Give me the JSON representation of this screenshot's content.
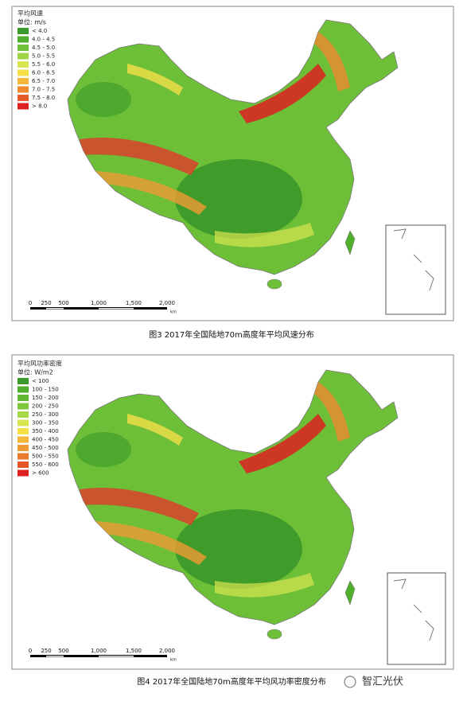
{
  "figures": [
    {
      "legend": {
        "title": "平均风速",
        "unit": "单位: m/s",
        "items": [
          "< 4.0",
          "4.0 - 4.5",
          "4.5 - 5.0",
          "5.0 - 5.5",
          "5.5 - 6.0",
          "6.0 - 6.5",
          "6.5 - 7.0",
          "7.0 - 7.5",
          "7.5 - 8.0",
          "> 8.0"
        ],
        "colors": [
          "#3a9a2a",
          "#4fae2c",
          "#72c13a",
          "#9fd447",
          "#d8e650",
          "#f5e04a",
          "#f4b73c",
          "#ef8a30",
          "#e85a28",
          "#dd2020"
        ]
      },
      "scale_labels": [
        "0",
        "250",
        "500",
        "1,000",
        "1,500",
        "2,000",
        "km"
      ],
      "caption": "图3  2017年全国陆地70m高度年平均风速分布"
    },
    {
      "legend": {
        "title": "平均风功率密度",
        "unit": "单位: W/m2",
        "items": [
          "< 100",
          "100 - 150",
          "150 - 200",
          "200 - 250",
          "250 - 300",
          "300 - 350",
          "350 - 400",
          "400 - 450",
          "450 - 500",
          "500 - 550",
          "550 - 600",
          "> 600"
        ],
        "colors": [
          "#3a9a2a",
          "#4fae2c",
          "#62b833",
          "#7fc83e",
          "#a6d84a",
          "#d8e650",
          "#f5e04a",
          "#f4b73c",
          "#ef9a33",
          "#ea7a2d",
          "#e55528",
          "#dd2020"
        ]
      },
      "scale_labels": [
        "0",
        "250",
        "500",
        "1,000",
        "1,500",
        "2,000",
        "km"
      ],
      "caption": "图4  2017年全国陆地70m高度年平均风功率密度分布"
    }
  ],
  "watermark": "智汇光伏"
}
